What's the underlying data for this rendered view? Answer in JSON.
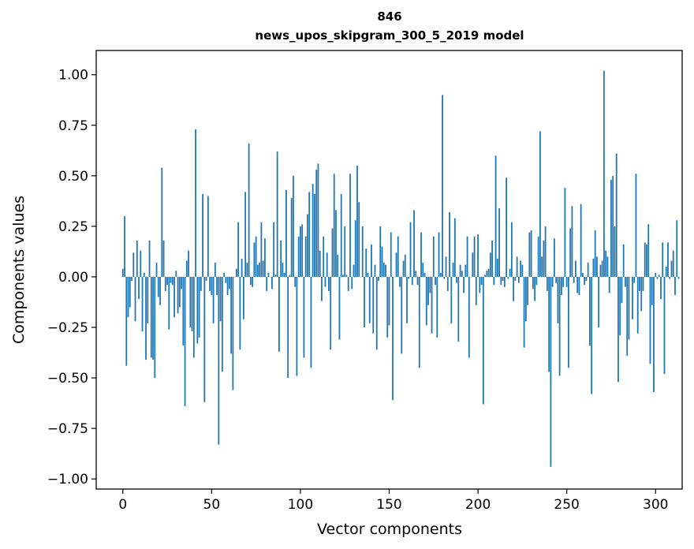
{
  "chart_data": {
    "type": "bar",
    "title_line1": "846",
    "title_line2": "news_upos_skipgram_300_5_2019 model",
    "xlabel": "Vector components",
    "ylabel": "Components values",
    "xlim": [
      -15,
      315
    ],
    "ylim": [
      -1.05,
      1.12
    ],
    "xticks": [
      0,
      50,
      100,
      150,
      200,
      250,
      300
    ],
    "xtick_labels": [
      "0",
      "50",
      "100",
      "150",
      "200",
      "250",
      "300"
    ],
    "yticks": [
      1.0,
      0.75,
      0.5,
      0.25,
      0.0,
      -0.25,
      -0.5,
      -0.75,
      -1.0
    ],
    "ytick_labels": [
      "1.00",
      "0.75",
      "0.50",
      "0.25",
      "0.00",
      "−0.25",
      "−0.50",
      "−0.75",
      "−1.00"
    ],
    "bar_color": "#1f77b4",
    "values": [
      0.04,
      0.3,
      -0.44,
      -0.2,
      -0.15,
      -0.02,
      0.12,
      -0.22,
      0.18,
      -0.11,
      0.13,
      -0.27,
      0.02,
      -0.41,
      -0.23,
      0.18,
      -0.4,
      -0.41,
      -0.5,
      0.07,
      -0.1,
      -0.14,
      0.54,
      0.18,
      -0.07,
      -0.04,
      -0.26,
      -0.03,
      -0.04,
      -0.2,
      0.03,
      -0.18,
      -0.15,
      -0.06,
      -0.34,
      -0.64,
      0.08,
      0.13,
      -0.25,
      -0.27,
      -0.4,
      0.73,
      -0.33,
      -0.3,
      -0.07,
      0.41,
      -0.62,
      -0.02,
      0.4,
      -0.07,
      -0.09,
      -0.23,
      0.07,
      -0.09,
      -0.83,
      -0.22,
      -0.47,
      0.02,
      -0.03,
      -0.09,
      -0.06,
      -0.38,
      -0.56,
      0.0,
      0.04,
      0.27,
      -0.36,
      0.09,
      -0.21,
      0.42,
      0.07,
      0.66,
      -0.04,
      -0.05,
      0.17,
      0.2,
      0.06,
      0.07,
      0.27,
      0.08,
      0.19,
      -0.07,
      0.02,
      0.0,
      -0.06,
      0.27,
      0.01,
      0.62,
      -0.37,
      0.18,
      0.07,
      0.02,
      0.43,
      -0.5,
      0.01,
      0.39,
      0.5,
      -0.05,
      -0.49,
      0.2,
      0.25,
      0.26,
      -0.4,
      0.2,
      0.31,
      0.42,
      -0.45,
      0.46,
      0.41,
      0.53,
      0.56,
      0.13,
      -0.12,
      0.2,
      -0.05,
      0.12,
      -0.07,
      -0.36,
      0.24,
      0.51,
      0.33,
      0.11,
      -0.31,
      0.41,
      0.01,
      0.25,
      0.01,
      -0.07,
      0.51,
      -0.06,
      0.06,
      0.28,
      0.55,
      0.37,
      0.0,
      0.25,
      -0.25,
      0.14,
      0.02,
      -0.23,
      0.16,
      -0.28,
      0.06,
      -0.36,
      -0.02,
      0.25,
      0.15,
      0.07,
      0.06,
      -0.3,
      -0.24,
      0.22,
      -0.61,
      0.0,
      0.12,
      0.2,
      -0.05,
      -0.38,
      0.08,
      0.11,
      -0.23,
      -0.01,
      0.27,
      -0.04,
      0.33,
      0.03,
      -0.04,
      -0.45,
      0.22,
      0.07,
      0.02,
      -0.24,
      -0.14,
      -0.08,
      -0.28,
      0.2,
      -0.04,
      -0.3,
      0.22,
      0.02,
      0.9,
      -0.01,
      0.1,
      -0.07,
      0.32,
      -0.23,
      0.07,
      0.29,
      -0.03,
      -0.32,
      0.06,
      0.03,
      -0.08,
      0.06,
      0.2,
      -0.4,
      0.0,
      0.12,
      0.2,
      -0.14,
      0.21,
      -0.08,
      -0.04,
      -0.63,
      0.01,
      0.03,
      0.04,
      0.12,
      0.18,
      -0.04,
      0.6,
      0.09,
      0.34,
      -0.04,
      -0.02,
      -0.05,
      0.49,
      -0.01,
      0.04,
      0.27,
      -0.12,
      -0.02,
      0.1,
      -0.03,
      0.08,
      0.06,
      -0.35,
      -0.22,
      -0.14,
      0.22,
      0.23,
      -0.06,
      -0.12,
      -0.04,
      0.2,
      0.72,
      0.1,
      0.18,
      0.25,
      -0.07,
      -0.47,
      -0.94,
      -0.05,
      0.19,
      -0.03,
      -0.23,
      -0.49,
      -0.09,
      -0.05,
      0.44,
      -0.05,
      -0.45,
      0.24,
      0.35,
      -0.03,
      0.08,
      -0.08,
      -0.09,
      0.36,
      0.02,
      -0.04,
      -0.02,
      0.07,
      -0.34,
      -0.58,
      0.09,
      0.23,
      0.1,
      -0.25,
      0.06,
      0.08,
      1.02,
      0.13,
      0.1,
      -0.08,
      0.48,
      0.5,
      0.25,
      0.61,
      -0.52,
      -0.29,
      -0.13,
      0.16,
      -0.05,
      -0.39,
      -0.31,
      0.0,
      -0.21,
      -0.03,
      0.51,
      -0.28,
      -0.07,
      -0.17,
      -0.07,
      0.17,
      0.16,
      0.26,
      -0.43,
      -0.14,
      -0.57,
      0.02,
      -0.01,
      0.01,
      -0.11,
      0.17,
      -0.48,
      0.05,
      0.17,
      -0.01,
      0.08,
      0.13,
      -0.09,
      0.28,
      -0.01
    ]
  }
}
